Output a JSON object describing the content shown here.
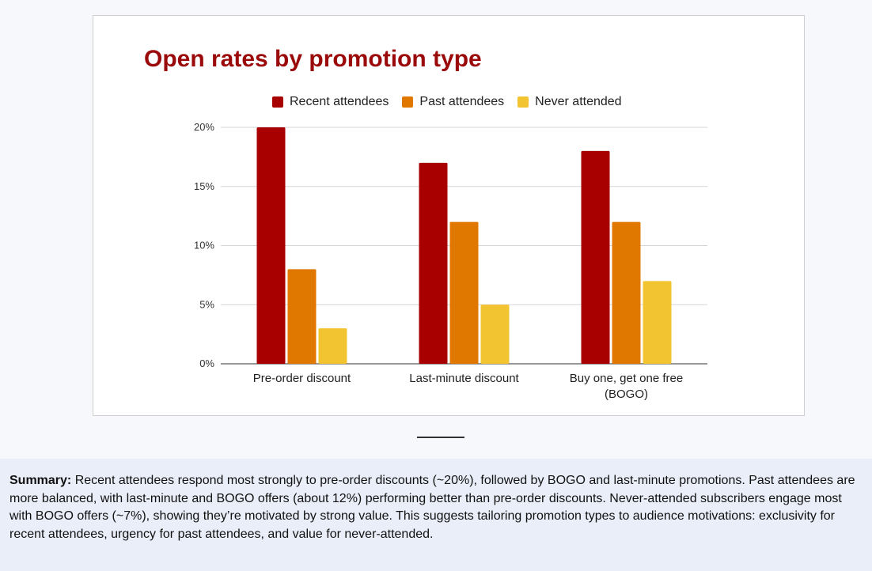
{
  "chart_data": {
    "type": "bar",
    "title": "Open rates by promotion type",
    "categories": [
      "Pre-order discount",
      "Last-minute discount",
      "Buy one, get one free (BOGO)"
    ],
    "category_lines": [
      [
        "Pre-order discount"
      ],
      [
        "Last-minute discount"
      ],
      [
        "Buy one, get one free",
        "(BOGO)"
      ]
    ],
    "series": [
      {
        "name": "Recent attendees",
        "color": "#a80000",
        "values": [
          20,
          17,
          18
        ]
      },
      {
        "name": "Past attendees",
        "color": "#e07800",
        "values": [
          8,
          12,
          12
        ]
      },
      {
        "name": "Never attended",
        "color": "#f2c431",
        "values": [
          3,
          5,
          7
        ]
      }
    ],
    "ylim": [
      0,
      20
    ],
    "yticks": [
      0,
      5,
      10,
      15,
      20
    ],
    "ytick_labels": [
      "0%",
      "5%",
      "10%",
      "15%",
      "20%"
    ],
    "xlabel": "",
    "ylabel": "",
    "grid": true,
    "legend_position": "top"
  },
  "summary": {
    "label": "Summary:",
    "text": " Recent attendees respond most strongly to pre-order discounts (~20%), followed by BOGO and last-minute promotions. Past attendees are more balanced, with last-minute and BOGO offers (about 12%) performing better than pre-order discounts. Never-attended subscribers engage most with BOGO offers (~7%), showing they’re motivated by strong value. This suggests tailoring promotion types to audience motivations: exclusivity for recent attendees, urgency for past attendees, and value for never-attended."
  }
}
